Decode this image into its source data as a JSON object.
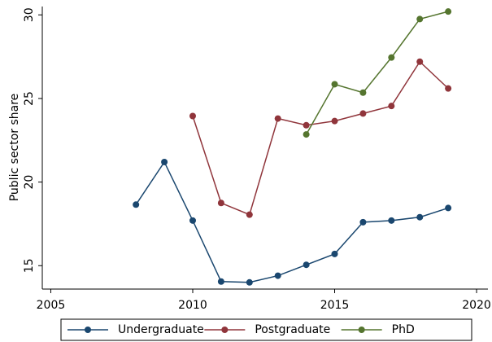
{
  "chart_data": {
    "type": "line",
    "y_label": "Public sector share",
    "x": [
      2008,
      2009,
      2010,
      2011,
      2012,
      2013,
      2014,
      2015,
      2016,
      2017,
      2018,
      2019
    ],
    "series": [
      {
        "name": "Undergraduate",
        "color": "#1a476f",
        "values": [
          18.65,
          21.2,
          17.7,
          14.05,
          14.0,
          14.4,
          15.05,
          15.7,
          17.6,
          17.7,
          17.9,
          18.45
        ]
      },
      {
        "name": "Postgraduate",
        "color": "#90353b",
        "values": [
          null,
          null,
          23.95,
          18.75,
          18.05,
          23.8,
          23.4,
          23.65,
          24.1,
          24.55,
          27.2,
          25.6
        ]
      },
      {
        "name": "PhD",
        "color": "#55752f",
        "values": [
          null,
          null,
          null,
          null,
          null,
          null,
          22.85,
          25.85,
          25.35,
          27.45,
          29.75,
          30.2
        ]
      }
    ],
    "xlim": [
      2004.7,
      2020.4
    ],
    "xticks": [
      2005,
      2010,
      2015,
      2020
    ],
    "ylim": [
      13.6,
      30.5
    ],
    "yticks": [
      15,
      20,
      25,
      30
    ],
    "grid": false,
    "legend_position": "bottom"
  }
}
